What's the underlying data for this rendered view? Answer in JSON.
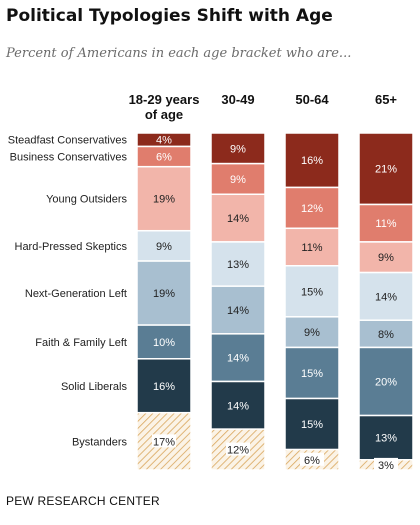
{
  "title": "Political Typologies Shift with Age",
  "subtitle": "Percent of Americans in each age bracket who are...",
  "source": "PEW RESEARCH CENTER",
  "chart_data": {
    "type": "bar",
    "stacked": true,
    "orientation": "vertical",
    "categories": [
      "18-29 years of age",
      "30-49",
      "50-64",
      "65+"
    ],
    "category_lines": [
      [
        "18-29 years",
        "of age"
      ],
      [
        "30-49"
      ],
      [
        "50-64"
      ],
      [
        "65+"
      ]
    ],
    "series": [
      {
        "name": "Steadfast Conservatives",
        "values": [
          4,
          9,
          16,
          21
        ],
        "color": "#8c2a1c"
      },
      {
        "name": "Business Conservatives",
        "values": [
          6,
          9,
          12,
          11
        ],
        "color": "#e07d6d"
      },
      {
        "name": "Young Outsiders",
        "values": [
          19,
          14,
          11,
          9
        ],
        "color": "#f2b5aa"
      },
      {
        "name": "Hard-Pressed Skeptics",
        "values": [
          9,
          13,
          15,
          14
        ],
        "color": "#d5e2ec"
      },
      {
        "name": "Next-Generation Left",
        "values": [
          19,
          14,
          9,
          8
        ],
        "color": "#a8bfd0"
      },
      {
        "name": "Faith & Family Left",
        "values": [
          10,
          14,
          15,
          20
        ],
        "color": "#5a7d94"
      },
      {
        "name": "Solid Liberals",
        "values": [
          16,
          14,
          15,
          13
        ],
        "color": "#223a4a"
      },
      {
        "name": "Bystanders",
        "values": [
          17,
          12,
          6,
          3
        ],
        "color": "hatched-tan"
      }
    ],
    "value_suffix": "%",
    "legend": "left"
  }
}
